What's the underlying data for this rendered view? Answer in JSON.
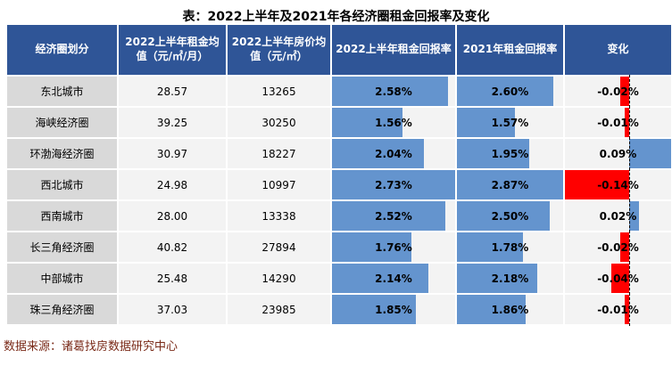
{
  "title": "表：2022上半年及2021年各经济圈租金回报率及变化",
  "source": "数据来源：诸葛找房数据研究中心",
  "colors": {
    "header-bg": "#2F5597",
    "bar-blue": "#6494CE",
    "bar-red": "#FF0000",
    "region-bg": "#D9D9D9",
    "cell-bg": "#F3F3F3",
    "title-color": "#000000",
    "source-color": "#7A2A18"
  },
  "chart_data": {
    "type": "table",
    "title": "表：2022上半年及2021年各经济圈租金回报率及变化",
    "columns": [
      "经济圈划分",
      "2022上半年租金均值（元/㎡/月）",
      "2022上半年房价均值（元/㎡）",
      "2022上半年租金回报率",
      "2021年租金回报率",
      "变化"
    ],
    "bar_style_notes": {
      "return_columns": "blue data bars scaled from 0 to column max",
      "change_column": "diverging data bars around dashed zero axis; negative red extends left, positive blue extends right",
      "change_axis_range": [
        -0.14,
        0.09
      ]
    },
    "rows": [
      {
        "region": "东北城市",
        "rent_avg": "28.57",
        "price_avg": "13265",
        "return_2022h1": "2.58%",
        "return_2021": "2.60%",
        "change": "-0.02%"
      },
      {
        "region": "海峡经济圈",
        "rent_avg": "39.25",
        "price_avg": "30250",
        "return_2022h1": "1.56%",
        "return_2021": "1.57%",
        "change": "-0.01%"
      },
      {
        "region": "环渤海经济圈",
        "rent_avg": "30.97",
        "price_avg": "18227",
        "return_2022h1": "2.04%",
        "return_2021": "1.95%",
        "change": "0.09%"
      },
      {
        "region": "西北城市",
        "rent_avg": "24.98",
        "price_avg": "10997",
        "return_2022h1": "2.73%",
        "return_2021": "2.87%",
        "change": "-0.14%"
      },
      {
        "region": "西南城市",
        "rent_avg": "28.00",
        "price_avg": "13338",
        "return_2022h1": "2.52%",
        "return_2021": "2.50%",
        "change": "0.02%"
      },
      {
        "region": "长三角经济圈",
        "rent_avg": "40.82",
        "price_avg": "27894",
        "return_2022h1": "1.76%",
        "return_2021": "1.78%",
        "change": "-0.02%"
      },
      {
        "region": "中部城市",
        "rent_avg": "25.48",
        "price_avg": "14290",
        "return_2022h1": "2.14%",
        "return_2021": "2.18%",
        "change": "-0.04%"
      },
      {
        "region": "珠三角经济圈",
        "rent_avg": "37.03",
        "price_avg": "23985",
        "return_2022h1": "1.85%",
        "return_2021": "1.86%",
        "change": "-0.01%"
      }
    ]
  }
}
